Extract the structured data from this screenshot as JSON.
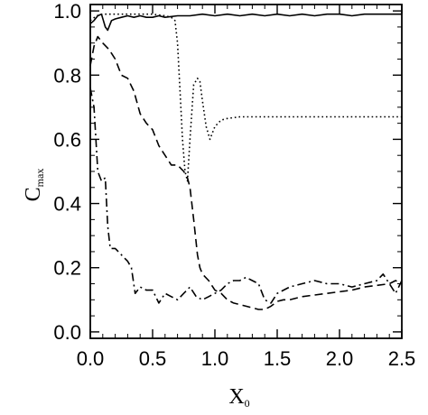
{
  "chart_data": {
    "type": "line",
    "title": "",
    "xlabel": {
      "main": "X",
      "sub": "0"
    },
    "ylabel": {
      "main": "C",
      "sub": "max"
    },
    "xlim": [
      0.0,
      2.5
    ],
    "ylim": [
      -0.02,
      1.02
    ],
    "x_ticks": [
      "0.0",
      "0.5",
      "1.0",
      "1.5",
      "2.0",
      "2.5"
    ],
    "y_ticks": [
      "0.0",
      "0.2",
      "0.4",
      "0.6",
      "0.8",
      "1.0"
    ],
    "grid": false,
    "legend": "none",
    "series": [
      {
        "style": "solid",
        "points": [
          [
            0.0,
            0.96
          ],
          [
            0.03,
            0.97
          ],
          [
            0.06,
            0.985
          ],
          [
            0.09,
            0.99
          ],
          [
            0.12,
            0.95
          ],
          [
            0.14,
            0.94
          ],
          [
            0.17,
            0.97
          ],
          [
            0.2,
            0.975
          ],
          [
            0.25,
            0.98
          ],
          [
            0.3,
            0.985
          ],
          [
            0.35,
            0.98
          ],
          [
            0.4,
            0.985
          ],
          [
            0.45,
            0.98
          ],
          [
            0.5,
            0.98
          ],
          [
            0.55,
            0.985
          ],
          [
            0.6,
            0.98
          ],
          [
            0.7,
            0.985
          ],
          [
            0.8,
            0.985
          ],
          [
            0.9,
            0.99
          ],
          [
            1.0,
            0.985
          ],
          [
            1.1,
            0.99
          ],
          [
            1.2,
            0.985
          ],
          [
            1.3,
            0.99
          ],
          [
            1.4,
            0.985
          ],
          [
            1.5,
            0.99
          ],
          [
            1.6,
            0.985
          ],
          [
            1.7,
            0.99
          ],
          [
            1.8,
            0.985
          ],
          [
            1.9,
            0.99
          ],
          [
            2.0,
            0.99
          ],
          [
            2.1,
            0.985
          ],
          [
            2.2,
            0.99
          ],
          [
            2.3,
            0.99
          ],
          [
            2.4,
            0.99
          ],
          [
            2.5,
            0.99
          ]
        ]
      },
      {
        "style": "dotted",
        "points": [
          [
            0.0,
            0.97
          ],
          [
            0.05,
            0.985
          ],
          [
            0.1,
            0.99
          ],
          [
            0.2,
            0.99
          ],
          [
            0.3,
            0.99
          ],
          [
            0.4,
            0.99
          ],
          [
            0.5,
            0.99
          ],
          [
            0.6,
            0.985
          ],
          [
            0.65,
            0.98
          ],
          [
            0.68,
            0.97
          ],
          [
            0.7,
            0.9
          ],
          [
            0.72,
            0.75
          ],
          [
            0.74,
            0.6
          ],
          [
            0.76,
            0.5
          ],
          [
            0.78,
            0.47
          ],
          [
            0.8,
            0.6
          ],
          [
            0.83,
            0.77
          ],
          [
            0.86,
            0.79
          ],
          [
            0.88,
            0.78
          ],
          [
            0.9,
            0.72
          ],
          [
            0.93,
            0.64
          ],
          [
            0.96,
            0.6
          ],
          [
            1.0,
            0.64
          ],
          [
            1.05,
            0.66
          ],
          [
            1.1,
            0.665
          ],
          [
            1.2,
            0.67
          ],
          [
            1.4,
            0.67
          ],
          [
            1.6,
            0.67
          ],
          [
            1.8,
            0.67
          ],
          [
            2.0,
            0.67
          ],
          [
            2.2,
            0.67
          ],
          [
            2.4,
            0.67
          ],
          [
            2.5,
            0.67
          ]
        ]
      },
      {
        "style": "dashed",
        "points": [
          [
            0.0,
            0.83
          ],
          [
            0.03,
            0.89
          ],
          [
            0.06,
            0.92
          ],
          [
            0.1,
            0.9
          ],
          [
            0.15,
            0.88
          ],
          [
            0.2,
            0.85
          ],
          [
            0.25,
            0.8
          ],
          [
            0.3,
            0.79
          ],
          [
            0.35,
            0.75
          ],
          [
            0.4,
            0.68
          ],
          [
            0.45,
            0.65
          ],
          [
            0.5,
            0.63
          ],
          [
            0.55,
            0.58
          ],
          [
            0.6,
            0.55
          ],
          [
            0.65,
            0.52
          ],
          [
            0.7,
            0.52
          ],
          [
            0.75,
            0.5
          ],
          [
            0.78,
            0.48
          ],
          [
            0.8,
            0.45
          ],
          [
            0.83,
            0.35
          ],
          [
            0.86,
            0.24
          ],
          [
            0.88,
            0.2
          ],
          [
            0.9,
            0.18
          ],
          [
            0.95,
            0.16
          ],
          [
            1.0,
            0.13
          ],
          [
            1.05,
            0.12
          ],
          [
            1.1,
            0.1
          ],
          [
            1.15,
            0.09
          ],
          [
            1.2,
            0.085
          ],
          [
            1.25,
            0.08
          ],
          [
            1.3,
            0.075
          ],
          [
            1.35,
            0.07
          ],
          [
            1.4,
            0.07
          ],
          [
            1.45,
            0.08
          ],
          [
            1.5,
            0.095
          ],
          [
            1.55,
            0.1
          ],
          [
            1.6,
            0.1
          ],
          [
            1.7,
            0.11
          ],
          [
            1.8,
            0.115
          ],
          [
            1.9,
            0.12
          ],
          [
            2.0,
            0.125
          ],
          [
            2.1,
            0.13
          ],
          [
            2.2,
            0.14
          ],
          [
            2.3,
            0.145
          ],
          [
            2.4,
            0.15
          ],
          [
            2.45,
            0.16
          ],
          [
            2.5,
            0.15
          ]
        ]
      },
      {
        "style": "dashdot",
        "points": [
          [
            0.0,
            0.76
          ],
          [
            0.03,
            0.7
          ],
          [
            0.06,
            0.5
          ],
          [
            0.09,
            0.47
          ],
          [
            0.12,
            0.48
          ],
          [
            0.14,
            0.33
          ],
          [
            0.16,
            0.26
          ],
          [
            0.2,
            0.26
          ],
          [
            0.25,
            0.24
          ],
          [
            0.3,
            0.22
          ],
          [
            0.33,
            0.2
          ],
          [
            0.36,
            0.12
          ],
          [
            0.4,
            0.14
          ],
          [
            0.45,
            0.13
          ],
          [
            0.5,
            0.13
          ],
          [
            0.55,
            0.09
          ],
          [
            0.6,
            0.12
          ],
          [
            0.65,
            0.11
          ],
          [
            0.7,
            0.1
          ],
          [
            0.75,
            0.12
          ],
          [
            0.8,
            0.14
          ],
          [
            0.85,
            0.11
          ],
          [
            0.9,
            0.1
          ],
          [
            0.95,
            0.11
          ],
          [
            1.0,
            0.12
          ],
          [
            1.05,
            0.13
          ],
          [
            1.1,
            0.15
          ],
          [
            1.15,
            0.16
          ],
          [
            1.2,
            0.16
          ],
          [
            1.25,
            0.17
          ],
          [
            1.3,
            0.16
          ],
          [
            1.35,
            0.15
          ],
          [
            1.4,
            0.1
          ],
          [
            1.45,
            0.09
          ],
          [
            1.5,
            0.12
          ],
          [
            1.6,
            0.14
          ],
          [
            1.7,
            0.15
          ],
          [
            1.8,
            0.16
          ],
          [
            1.9,
            0.15
          ],
          [
            2.0,
            0.15
          ],
          [
            2.1,
            0.14
          ],
          [
            2.2,
            0.15
          ],
          [
            2.3,
            0.16
          ],
          [
            2.35,
            0.18
          ],
          [
            2.4,
            0.15
          ],
          [
            2.45,
            0.12
          ],
          [
            2.5,
            0.16
          ]
        ]
      }
    ]
  }
}
